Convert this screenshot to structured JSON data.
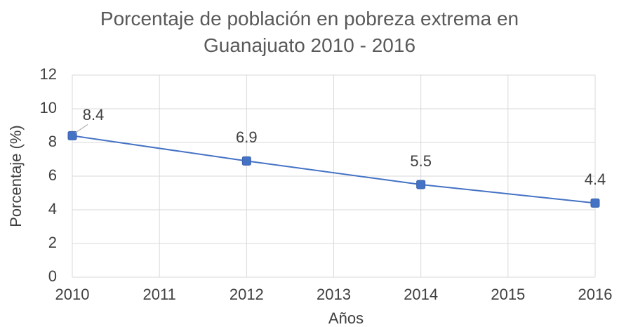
{
  "chart_data": {
    "type": "line",
    "title": "Porcentaje de población en pobreza extrema en Guanajuato 2010 - 2016",
    "x_label": "Años",
    "y_label": "Porcentaje (%)",
    "x": [
      2010,
      2012,
      2014,
      2016
    ],
    "series": [
      {
        "name": "Porcentaje",
        "color": "#4472c4",
        "values": [
          8.4,
          6.9,
          5.5,
          4.4
        ]
      }
    ],
    "xlim": [
      2010,
      2016
    ],
    "xticks": [
      2010,
      2011,
      2012,
      2013,
      2014,
      2015,
      2016
    ],
    "ylim": [
      0,
      12
    ],
    "yticks": [
      0,
      2,
      4,
      6,
      8,
      10,
      12
    ],
    "grid": true
  }
}
